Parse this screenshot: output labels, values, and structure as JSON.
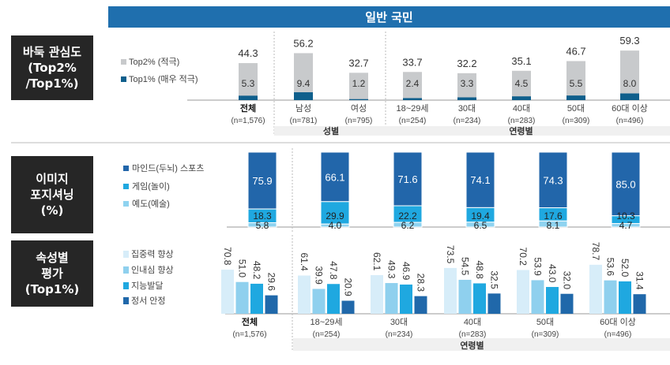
{
  "header": {
    "title": "일반 국민"
  },
  "sections": [
    {
      "label": "바둑 관심도\n(Top2%\n/Top1%)"
    },
    {
      "label": "이미지\n포지셔닝\n(%)"
    },
    {
      "label": "속성별\n평가\n(Top1%)"
    }
  ],
  "colors": {
    "header": "#1f6fae",
    "box": "#262626",
    "top2": "#c8cacc",
    "top1": "#0f5f8c",
    "mind": "#2266aa",
    "game": "#1fa8e0",
    "art": "#8fd3f0",
    "s1": "#d7edf9",
    "s2": "#8fd0ee",
    "s3": "#1fa8e0",
    "s4": "#2068aa",
    "group_strip": "#f0f0f0"
  },
  "chart_data": [
    {
      "type": "bar",
      "categories": [
        "전체",
        "남성",
        "여성",
        "18~29세",
        "30대",
        "40대",
        "50대",
        "60대 이상"
      ],
      "n_labels": [
        "(n=1,576)",
        "(n=781)",
        "(n=795)",
        "(n=254)",
        "(n=234)",
        "(n=283)",
        "(n=309)",
        "(n=496)"
      ],
      "groups": [
        {
          "label": "성별",
          "from": 1,
          "to": 2
        },
        {
          "label": "연령별",
          "from": 3,
          "to": 7
        }
      ],
      "series": [
        {
          "name": "Top2% (적극)",
          "values": [
            44.3,
            56.2,
            32.7,
            33.7,
            32.2,
            35.1,
            46.7,
            59.3
          ]
        },
        {
          "name": "Top1% (매우 적극)",
          "values": [
            5.3,
            9.4,
            1.2,
            2.4,
            3.3,
            4.5,
            5.5,
            8.0
          ]
        }
      ],
      "legend": "left"
    },
    {
      "type": "bar",
      "stacked": "100%",
      "series": [
        {
          "name": "마인드(두뇌) 스포츠",
          "values": [
            75.9,
            66.1,
            71.6,
            74.1,
            74.3,
            85.0
          ]
        },
        {
          "name": "게임(놀이)",
          "values": [
            18.3,
            29.9,
            22.2,
            19.4,
            17.6,
            10.3
          ]
        },
        {
          "name": "예도(예술)",
          "values": [
            5.8,
            4.0,
            6.2,
            6.5,
            8.1,
            4.7
          ]
        }
      ],
      "legend": "left"
    },
    {
      "type": "bar",
      "categories": [
        "전체",
        "18~29세",
        "30대",
        "40대",
        "50대",
        "60대 이상"
      ],
      "n_labels": [
        "(n=1,576)",
        "(n=254)",
        "(n=234)",
        "(n=283)",
        "(n=309)",
        "(n=496)"
      ],
      "groups": [
        {
          "label": "연령별",
          "from": 1,
          "to": 5
        }
      ],
      "series": [
        {
          "name": "집중력 향상",
          "values": [
            70.8,
            61.4,
            62.1,
            73.5,
            70.2,
            78.7
          ]
        },
        {
          "name": "인내심 향상",
          "values": [
            51.0,
            39.9,
            49.3,
            54.5,
            53.9,
            53.6
          ]
        },
        {
          "name": "지능발달",
          "values": [
            48.2,
            47.8,
            46.9,
            48.8,
            43.0,
            52.0
          ]
        },
        {
          "name": "정서 안정",
          "values": [
            29.6,
            20.9,
            28.3,
            32.5,
            32.0,
            31.4
          ]
        }
      ],
      "legend": "left"
    }
  ]
}
